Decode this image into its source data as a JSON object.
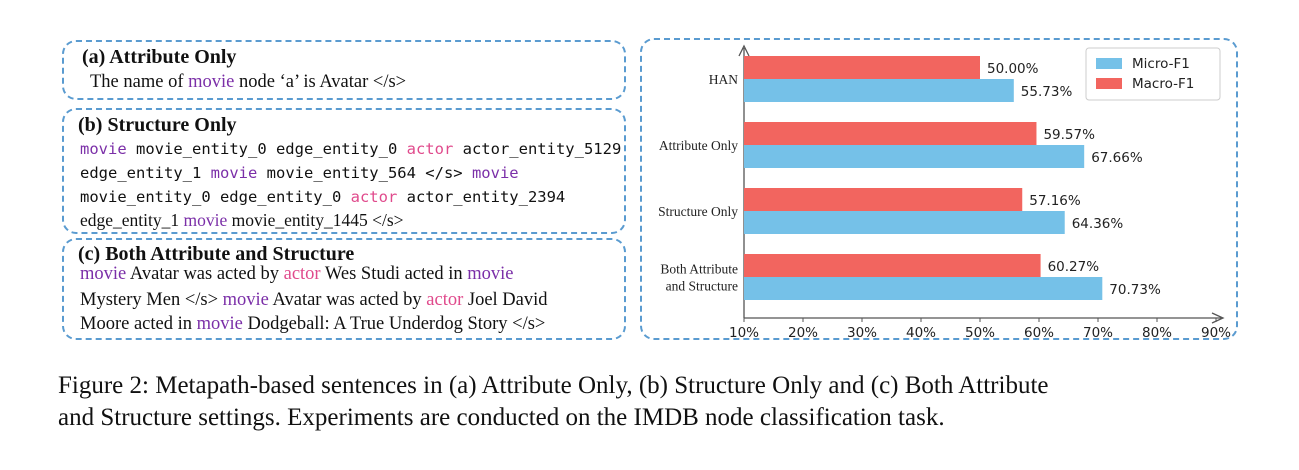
{
  "panel_a": {
    "title": "(a) Attribute Only",
    "line1": [
      {
        "t": "The name of ",
        "c": "text"
      },
      {
        "t": "movie",
        "c": "movie"
      },
      {
        "t": " node ‘a’ is Avatar </s>",
        "c": "text"
      }
    ]
  },
  "panel_b": {
    "title": "(b) Structure Only",
    "line1": [
      {
        "t": "movie",
        "c": "movie"
      },
      {
        "t": " movie_entity_0 edge_entity_0 ",
        "c": "text"
      },
      {
        "t": "actor",
        "c": "actor"
      },
      {
        "t": " actor_entity_5129",
        "c": "text"
      }
    ],
    "line2": [
      {
        "t": "edge_entity_1 ",
        "c": "text"
      },
      {
        "t": "movie",
        "c": "movie"
      },
      {
        "t": " movie_entity_564 </s> ",
        "c": "text"
      },
      {
        "t": "movie",
        "c": "movie"
      }
    ],
    "line3": [
      {
        "t": "movie_entity_0 edge_entity_0 ",
        "c": "text"
      },
      {
        "t": "actor",
        "c": "actor"
      },
      {
        "t": " actor_entity_2394",
        "c": "text"
      }
    ],
    "line4": [
      {
        "t": "edge_entity_1 ",
        "c": "text"
      },
      {
        "t": "movie",
        "c": "movie"
      },
      {
        "t": " movie_entity_1445 </s>",
        "c": "text"
      }
    ]
  },
  "panel_c": {
    "title": "(c) Both Attribute and  Structure",
    "line1": [
      {
        "t": "movie",
        "c": "movie"
      },
      {
        "t": " Avatar was acted by ",
        "c": "text"
      },
      {
        "t": "actor",
        "c": "actor"
      },
      {
        "t": " Wes Studi acted in ",
        "c": "text"
      },
      {
        "t": "movie",
        "c": "movie"
      }
    ],
    "line2": [
      {
        "t": "Mystery Men </s> ",
        "c": "text"
      },
      {
        "t": "movie",
        "c": "movie"
      },
      {
        "t": " Avatar was acted by ",
        "c": "text"
      },
      {
        "t": "actor",
        "c": "actor"
      },
      {
        "t": " Joel David",
        "c": "text"
      }
    ],
    "line3": [
      {
        "t": "Moore acted in ",
        "c": "text"
      },
      {
        "t": "movie",
        "c": "movie"
      },
      {
        "t": " Dodgeball: A True Underdog Story </s>",
        "c": "text"
      }
    ]
  },
  "colors": {
    "movie": "#7b2fa8",
    "actor": "#e04a8c",
    "dashed_border": "#5a9bd0",
    "micro_bar": "#75c1e8",
    "macro_bar": "#f2655f"
  },
  "chart_data": {
    "type": "bar",
    "orientation": "horizontal",
    "categories": [
      "HAN",
      "Attribute Only",
      "Structure Only",
      "Both Attribute and Structure"
    ],
    "category_lines": [
      [
        "HAN"
      ],
      [
        "Attribute Only"
      ],
      [
        "Structure Only"
      ],
      [
        "Both Attribute",
        "and Structure"
      ]
    ],
    "series": [
      {
        "name": "Micro-F1",
        "values": [
          55.73,
          67.66,
          64.36,
          70.73
        ],
        "labels": [
          "55.73%",
          "67.66%",
          "64.36%",
          "70.73%"
        ]
      },
      {
        "name": "Macro-F1",
        "values": [
          50.0,
          59.57,
          57.16,
          60.27
        ],
        "labels": [
          "50.00%",
          "59.57%",
          "57.16%",
          "60.27%"
        ]
      }
    ],
    "xlim": [
      10,
      90
    ],
    "xticks": [
      "10%",
      "20%",
      "30%",
      "40%",
      "50%",
      "60%",
      "70%",
      "80%",
      "90%"
    ],
    "legend": "top-right",
    "grid": false
  },
  "caption": {
    "line1": "Figure 2: Metapath-based sentences in (a) Attribute Only, (b) Structure Only and (c) Both Attribute",
    "line2": "and Structure settings. Experiments are conducted on the IMDB node classification task."
  }
}
